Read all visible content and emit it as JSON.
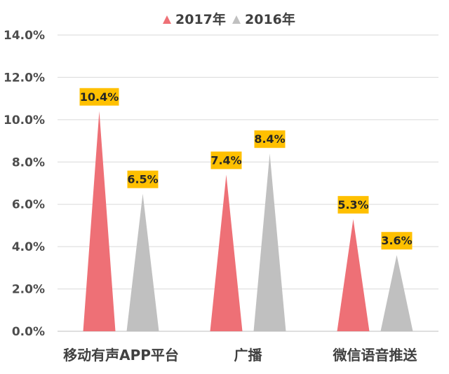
{
  "chart_data": {
    "type": "bar",
    "categories": [
      "移动有声APP平台",
      "广播",
      "微信语音推送"
    ],
    "series": [
      {
        "name": "2017年",
        "values": [
          10.4,
          7.4,
          5.3
        ],
        "labels": [
          "10.4%",
          "7.4%",
          "5.3%"
        ],
        "color": "#ee7076"
      },
      {
        "name": "2016年",
        "values": [
          6.5,
          8.4,
          3.6
        ],
        "labels": [
          "6.5%",
          "8.4%",
          "3.6%"
        ],
        "color": "#c0c0c0"
      }
    ],
    "ylim": [
      0,
      14
    ],
    "yticks": [
      0,
      2,
      4,
      6,
      8,
      10,
      12,
      14
    ],
    "ytick_labels": [
      "0.0%",
      "2.0%",
      "4.0%",
      "6.0%",
      "8.0%",
      "10.0%",
      "12.0%",
      "14.0%"
    ],
    "grid": true,
    "legend_position": "top-center",
    "title": "",
    "xlabel": "",
    "ylabel": "",
    "data_label_color": "#ffc000",
    "mark_shape": "triangle"
  }
}
